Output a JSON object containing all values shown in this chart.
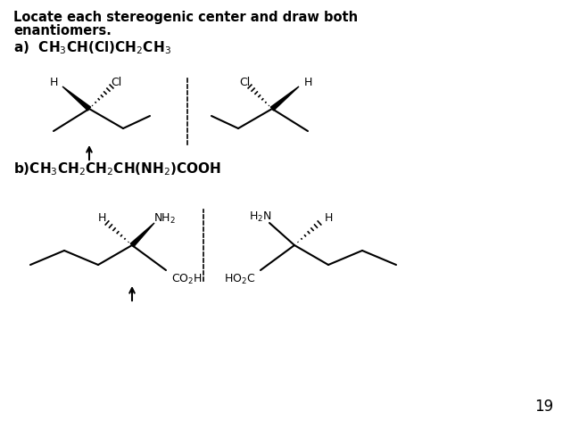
{
  "bg_color": "#ffffff",
  "text_color": "#000000",
  "page_number": "19",
  "title_line1": "Locate each stereogenic center and draw both",
  "title_line2": "enantiomers.",
  "label_a": "a)  $\\mathregular{CH_3CH(Cl)CH_2CH_3}$",
  "label_b": "b)$\\mathregular{CH_3CH_2CH_2CH(NH_2)COOH}$"
}
